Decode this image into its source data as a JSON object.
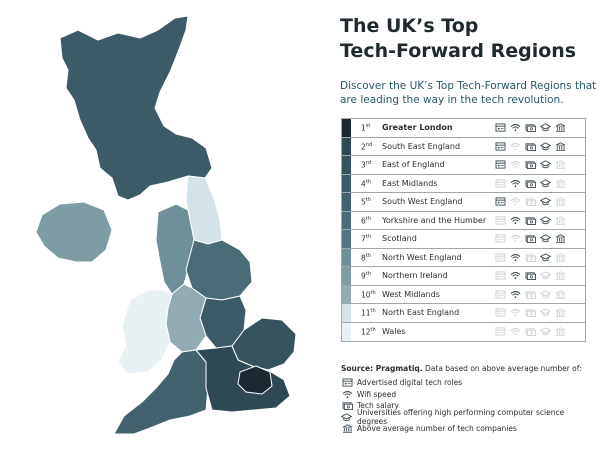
{
  "title_line1": "The UK’s Top",
  "title_line2": "Tech-Forward Regions",
  "subtitle": "Discover the UK’s Top Tech-Forward Regions that are leading the way in the tech revolution.",
  "icons": [
    "roles-icon",
    "wifi-icon",
    "salary-icon",
    "university-icon",
    "companies-icon"
  ],
  "regions": [
    {
      "rank": "1",
      "suffix": "st",
      "name": "Greater London",
      "bold": true,
      "color": "#1a2a30",
      "icons": [
        true,
        true,
        true,
        true,
        true
      ]
    },
    {
      "rank": "2",
      "suffix": "nd",
      "name": "South East England",
      "bold": false,
      "color": "#2f4a55",
      "icons": [
        true,
        false,
        true,
        true,
        true
      ]
    },
    {
      "rank": "3",
      "suffix": "rd",
      "name": "East of England",
      "bold": false,
      "color": "#36535e",
      "icons": [
        true,
        false,
        true,
        true,
        false
      ]
    },
    {
      "rank": "4",
      "suffix": "th",
      "name": "East Midlands",
      "bold": false,
      "color": "#3d5b66",
      "icons": [
        false,
        true,
        true,
        true,
        false
      ]
    },
    {
      "rank": "5",
      "suffix": "th",
      "name": "South West England",
      "bold": false,
      "color": "#43626d",
      "icons": [
        true,
        false,
        false,
        true,
        false
      ]
    },
    {
      "rank": "6",
      "suffix": "th",
      "name": "Yorkshire and the Humber",
      "bold": false,
      "color": "#4b6b76",
      "icons": [
        false,
        true,
        true,
        true,
        false
      ]
    },
    {
      "rank": "7",
      "suffix": "th",
      "name": "Scotland",
      "bold": false,
      "color": "#547580",
      "icons": [
        false,
        false,
        true,
        true,
        true
      ]
    },
    {
      "rank": "8",
      "suffix": "th",
      "name": "North West England",
      "bold": false,
      "color": "#6f8f99",
      "icons": [
        false,
        true,
        false,
        true,
        false
      ]
    },
    {
      "rank": "9",
      "suffix": "th",
      "name": "Northern Ireland",
      "bold": false,
      "color": "#7f9ba4",
      "icons": [
        false,
        true,
        true,
        false,
        false
      ]
    },
    {
      "rank": "10",
      "suffix": "th",
      "name": "West Midlands",
      "bold": false,
      "color": "#93acb4",
      "icons": [
        false,
        true,
        false,
        false,
        false
      ]
    },
    {
      "rank": "11",
      "suffix": "th",
      "name": "North East England",
      "bold": false,
      "color": "#d4e3e8",
      "icons": [
        false,
        false,
        false,
        false,
        false
      ]
    },
    {
      "rank": "12",
      "suffix": "th",
      "name": "Wales",
      "bold": false,
      "color": "#e8f1f4",
      "icons": [
        false,
        false,
        false,
        false,
        false
      ]
    }
  ],
  "source_label": "Source: Pragmatiq.",
  "source_text": " Data based on above average number of:",
  "legend": [
    {
      "icon": "roles-icon",
      "label": "Advertised digital tech roles"
    },
    {
      "icon": "wifi-icon",
      "label": "Wifi speed"
    },
    {
      "icon": "salary-icon",
      "label": "Tech salary"
    },
    {
      "icon": "university-icon",
      "label": "Universities offering high performing computer science degrees"
    },
    {
      "icon": "companies-icon",
      "label": "Above average number of tech companies"
    }
  ],
  "colors": {
    "active_icon": "#3a4a50",
    "inactive_icon": "#c9d0d3"
  }
}
